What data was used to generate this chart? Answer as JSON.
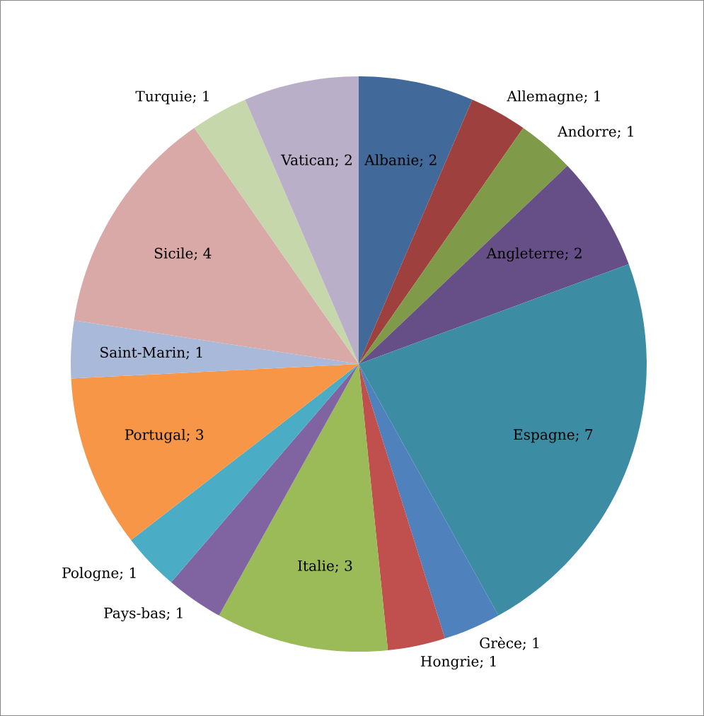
{
  "chart_data": {
    "type": "pie",
    "categories": [
      "Albanie; 2",
      "Allemagne; 1",
      "Andorre; 1",
      "Angleterre; 2",
      "Espagne; 7",
      "Grèce; 1",
      "Hongrie; 1",
      "Italie; 3",
      "Pays-bas; 1",
      "Pologne; 1",
      "Portugal; 3",
      "Saint-Marin; 1",
      "Sicile; 4",
      "Turquie; 1",
      "Vatican; 2"
    ],
    "values": [
      2,
      1,
      1,
      2,
      7,
      1,
      1,
      3,
      1,
      1,
      3,
      1,
      4,
      1,
      2
    ],
    "colors": [
      "#416a9b",
      "#9e403d",
      "#7f9a48",
      "#664f86",
      "#3c8da3",
      "#4f81bd",
      "#c0504d",
      "#9bbb59",
      "#8064a2",
      "#4bacc6",
      "#f79646",
      "#a9b9d9",
      "#d9a9a8",
      "#c6d7ab",
      "#b9afc9"
    ]
  }
}
